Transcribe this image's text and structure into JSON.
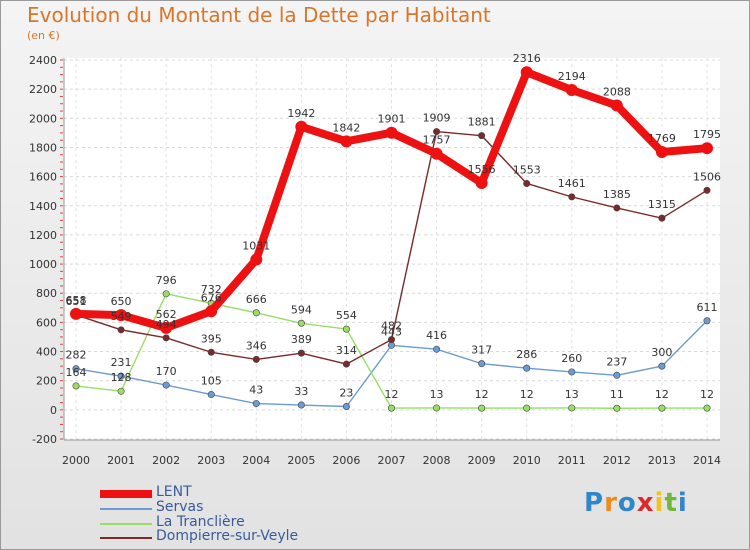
{
  "title": "Evolution du Montant de la Dette par Habitant",
  "subtitle": "(en €)",
  "logo": "Proxiti",
  "chart_data": {
    "type": "line",
    "title": "Evolution du Montant de la Dette par Habitant",
    "ylabel": "(en €)",
    "xlabel": "",
    "x": [
      "2000",
      "2001",
      "2002",
      "2003",
      "2004",
      "2005",
      "2006",
      "2007",
      "2008",
      "2009",
      "2010",
      "2011",
      "2012",
      "2013",
      "2014"
    ],
    "y_ticks": [
      -200,
      0,
      200,
      400,
      600,
      800,
      1000,
      1200,
      1400,
      1600,
      1800,
      2000,
      2200,
      2400
    ],
    "ylim": [
      -200,
      2400
    ],
    "legend_position": "bottom-left",
    "series": [
      {
        "name": "LENT",
        "color": "#ee1111",
        "values": [
          658,
          650,
          562,
          676,
          1031,
          1942,
          1842,
          1901,
          1757,
          1556,
          2316,
          2194,
          2088,
          1769,
          1795
        ]
      },
      {
        "name": "Servas",
        "color": "#6b9bd2",
        "values": [
          282,
          231,
          170,
          105,
          43,
          33,
          23,
          443,
          416,
          317,
          286,
          260,
          237,
          300,
          611
        ]
      },
      {
        "name": "La Tranclière",
        "color": "#99dd66",
        "values": [
          164,
          128,
          796,
          732,
          666,
          594,
          554,
          12,
          13,
          12,
          12,
          13,
          11,
          12,
          12
        ]
      },
      {
        "name": "Dompierre-sur-Veyle",
        "color": "#7a2a2a",
        "values": [
          651,
          549,
          494,
          395,
          346,
          389,
          314,
          482,
          1909,
          1881,
          1553,
          1461,
          1385,
          1315,
          1506
        ]
      }
    ]
  }
}
